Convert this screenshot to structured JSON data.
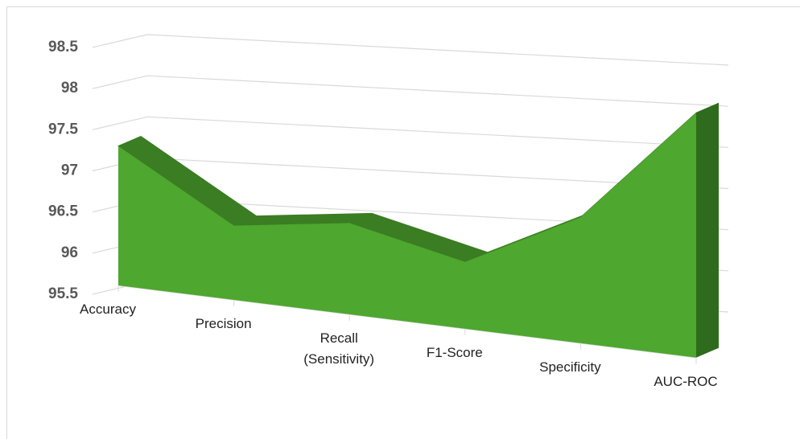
{
  "chart_data": {
    "type": "area3d",
    "categories": [
      "Accuracy",
      "Precision",
      "Recall (Sensitivity)",
      "F1-Score",
      "Specificity",
      "AUC-ROC"
    ],
    "values": [
      97.2,
      96.4,
      96.6,
      96.3,
      97.0,
      98.4
    ],
    "color": "#4ea72e",
    "ylim": [
      95.5,
      98.5
    ],
    "yticks": [
      95.5,
      96,
      96.5,
      97,
      97.5,
      98,
      98.5
    ],
    "grid": true
  }
}
